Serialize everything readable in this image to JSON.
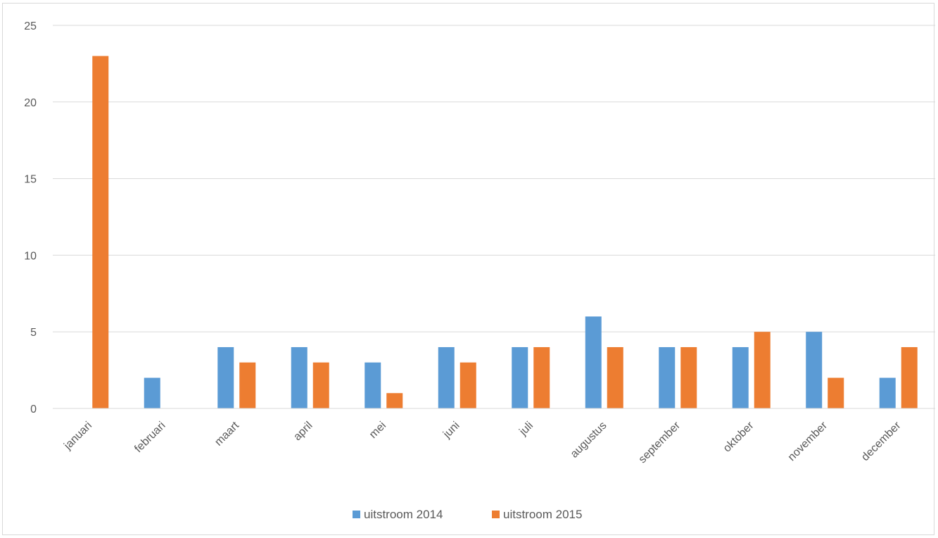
{
  "chart_data": {
    "type": "bar",
    "title": "",
    "xlabel": "",
    "ylabel": "",
    "categories": [
      "januari",
      "februari",
      "maart",
      "april",
      "mei",
      "juni",
      "juli",
      "augustus",
      "september",
      "oktober",
      "november",
      "december"
    ],
    "series": [
      {
        "name": "uitstroom 2014",
        "color": "#5b9bd5",
        "values": [
          0,
          2,
          4,
          4,
          3,
          4,
          4,
          6,
          4,
          4,
          5,
          2
        ]
      },
      {
        "name": "uitstroom 2015",
        "color": "#ed7d31",
        "values": [
          23,
          0,
          3,
          3,
          1,
          3,
          4,
          4,
          4,
          5,
          2,
          4
        ]
      }
    ],
    "ylim": [
      0,
      25
    ],
    "yticks": [
      0,
      5,
      10,
      15,
      20,
      25
    ],
    "grid": true,
    "legend_position": "bottom"
  }
}
